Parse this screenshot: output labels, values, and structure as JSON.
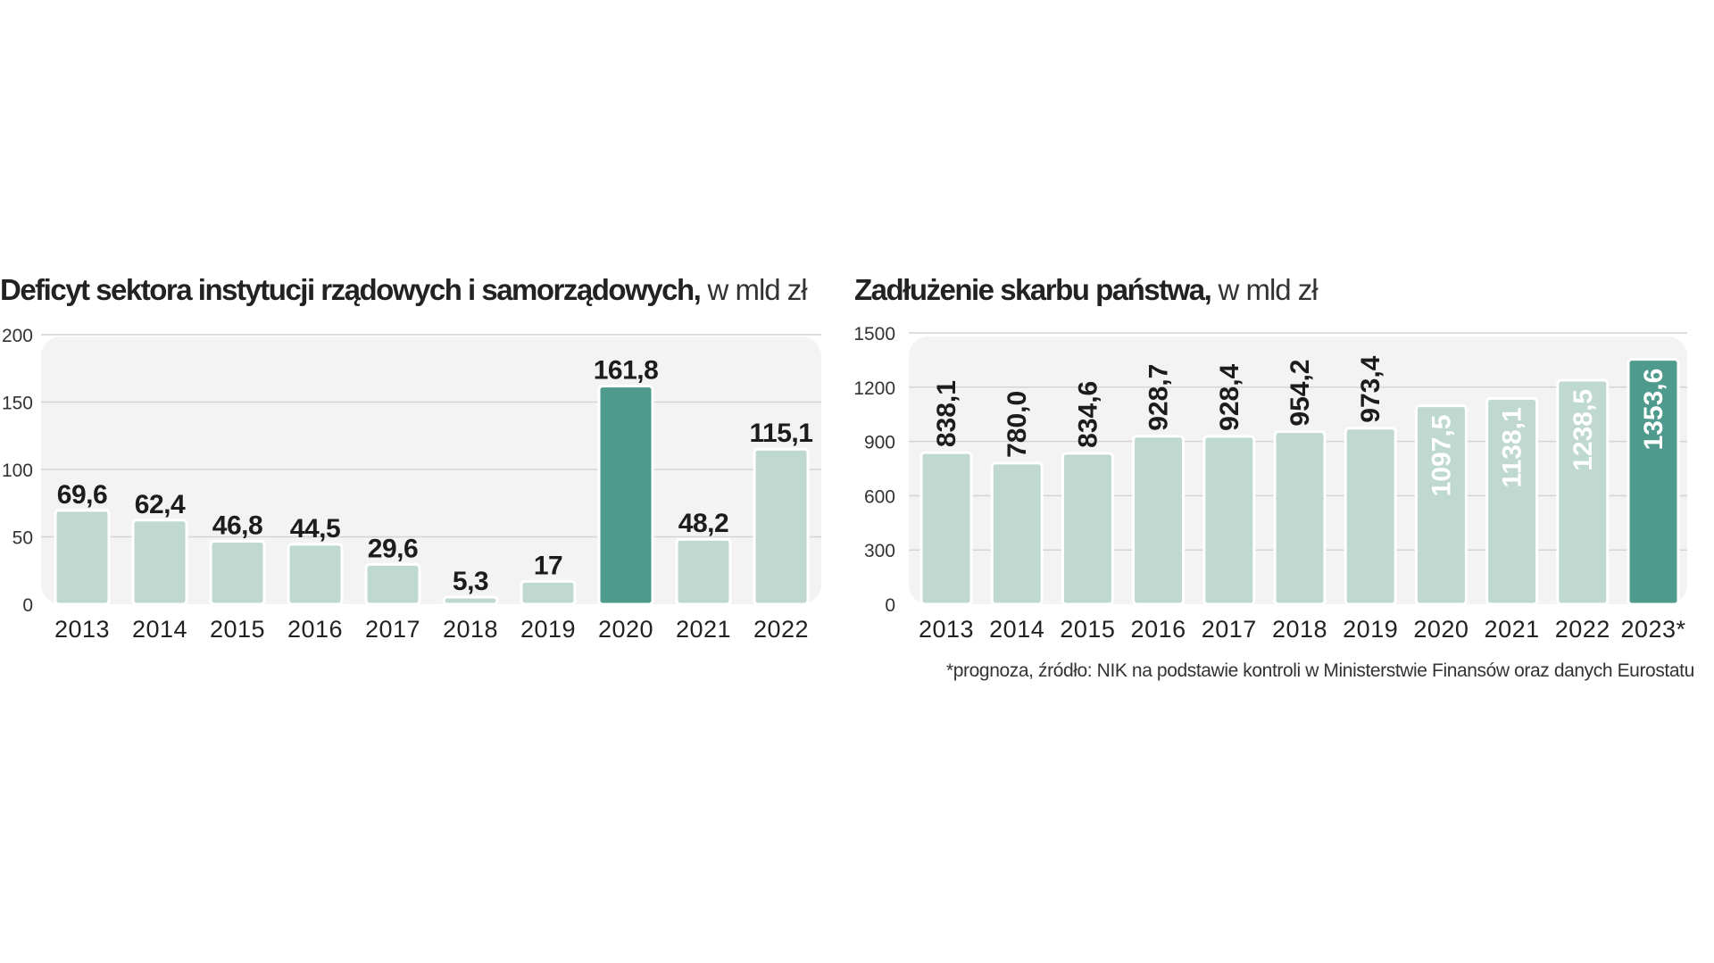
{
  "chart_data": [
    {
      "type": "bar",
      "title_bold": "Deficyt sektora instytucji rządowych i samorządowych,",
      "title_light": " w mld zł",
      "categories": [
        "2013",
        "2014",
        "2015",
        "2016",
        "2017",
        "2018",
        "2019",
        "2020",
        "2021",
        "2022"
      ],
      "values": [
        69.6,
        62.4,
        46.8,
        44.5,
        29.6,
        5.3,
        17,
        161.8,
        48.2,
        115.1
      ],
      "labels": [
        "69,6",
        "62,4",
        "46,8",
        "44,5",
        "29,6",
        "5,3",
        "17",
        "161,8",
        "48,2",
        "115,1"
      ],
      "highlight": [
        "2020"
      ],
      "yticks": [
        "0",
        "50",
        "100",
        "150",
        "200"
      ],
      "ylim": [
        0,
        200
      ],
      "label_orientation": "horizontal",
      "grid": true
    },
    {
      "type": "bar",
      "title_bold": "Zadłużenie skarbu państwa,",
      "title_light": " w mld zł",
      "categories": [
        "2013",
        "2014",
        "2015",
        "2016",
        "2017",
        "2018",
        "2019",
        "2020",
        "2021",
        "2022",
        "2023*"
      ],
      "values": [
        838.1,
        780.0,
        834.6,
        928.7,
        928.4,
        954.2,
        973.4,
        1097.5,
        1138.1,
        1238.5,
        1353.6
      ],
      "labels": [
        "838,1",
        "780,0",
        "834,6",
        "928,7",
        "928,4",
        "954,2",
        "973,4",
        "1097,5",
        "1138,1",
        "1238,5",
        "1353,6"
      ],
      "highlight": [
        "2023*"
      ],
      "yticks": [
        "0",
        "300",
        "600",
        "900",
        "1200",
        "1500"
      ],
      "ylim": [
        0,
        1500
      ],
      "label_orientation": "vertical",
      "grid": true
    }
  ],
  "colors": {
    "bar": "#bfd9d1",
    "bar_highlight": "#4e9a8c",
    "bar_border": "#ffffff",
    "panel": "#f3f3f3",
    "grid": "#d4d4d4",
    "label_dark": "#1c1c1c",
    "label_light": "#ffffff"
  },
  "footnote": "*prognoza, źródło: NIK na podstawie kontroli w Ministerstwie Finansów oraz danych Eurostatu"
}
